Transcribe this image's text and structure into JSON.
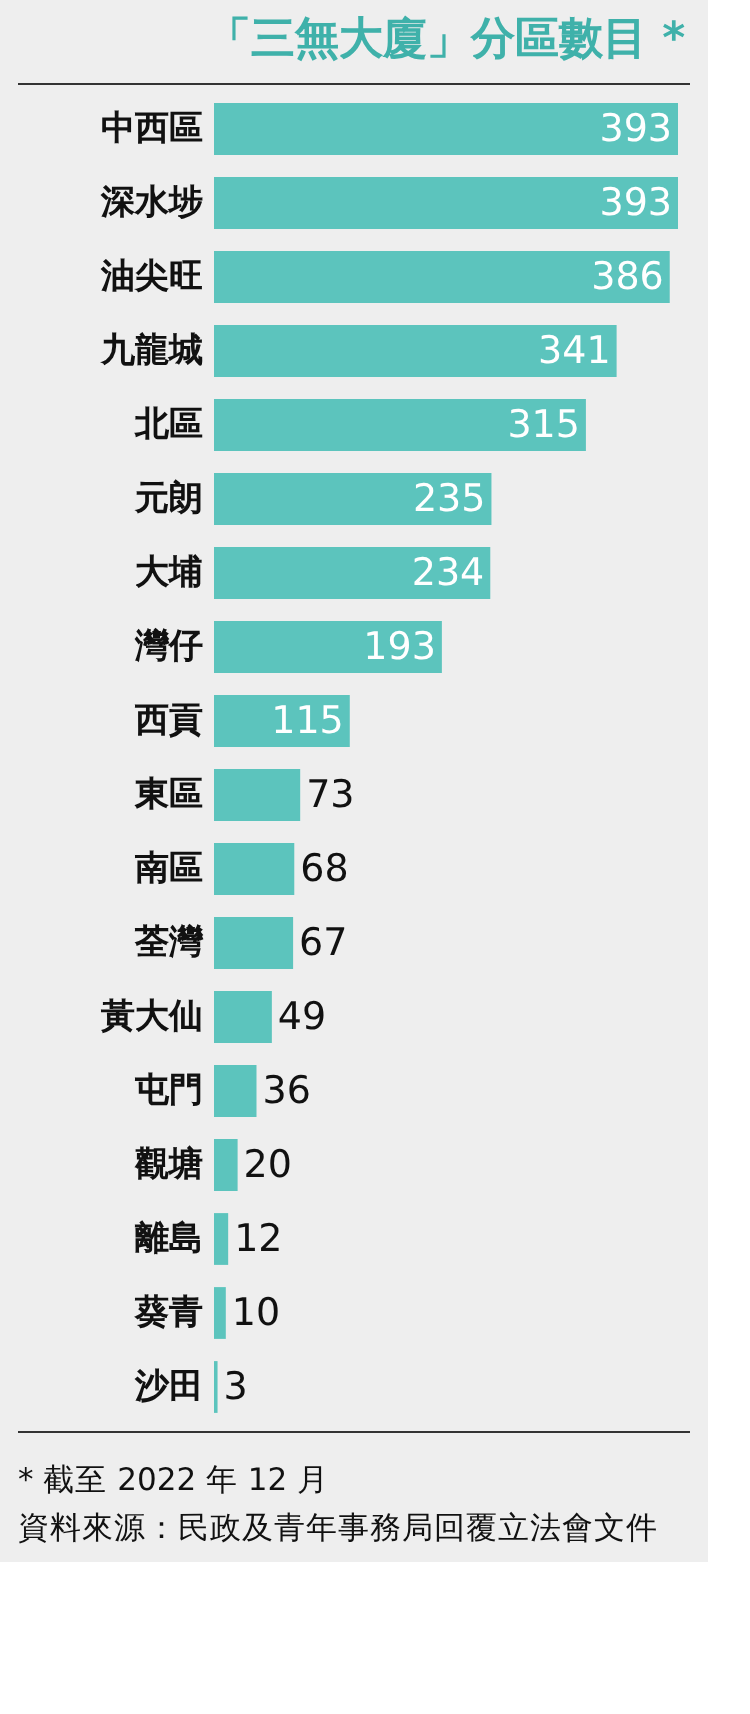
{
  "chart_data": {
    "type": "bar",
    "orientation": "horizontal",
    "title": "「三無大廈」分區數目 *",
    "categories": [
      "中西區",
      "深水埗",
      "油尖旺",
      "九龍城",
      "北區",
      "元朗",
      "大埔",
      "灣仔",
      "西貢",
      "東區",
      "南區",
      "荃灣",
      "黃大仙",
      "屯門",
      "觀塘",
      "離島",
      "葵青",
      "沙田"
    ],
    "values": [
      393,
      393,
      386,
      341,
      315,
      235,
      234,
      193,
      115,
      73,
      68,
      67,
      49,
      36,
      20,
      12,
      10,
      3
    ],
    "color": "#5cc4bd",
    "data_labels": true,
    "annotations": [
      "* 截至 2022 年 12 月",
      "資料來源：民政及青年事務局回覆立法會文件"
    ]
  }
}
